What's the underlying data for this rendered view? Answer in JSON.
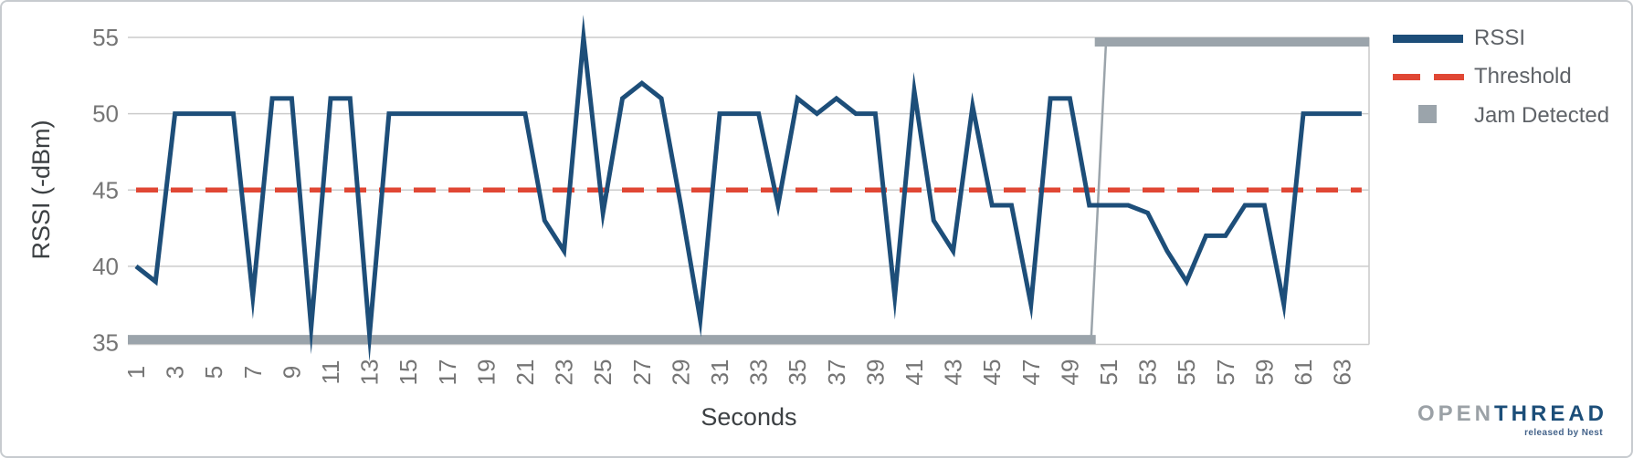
{
  "chart_data": {
    "type": "line",
    "title": "",
    "xlabel": "Seconds",
    "ylabel": "RSSI (-dBm)",
    "ylim": [
      35,
      55
    ],
    "yticks": [
      55,
      50,
      45,
      40,
      35
    ],
    "xticks": [
      1,
      3,
      5,
      7,
      9,
      11,
      13,
      15,
      17,
      19,
      21,
      23,
      25,
      27,
      29,
      31,
      33,
      35,
      37,
      39,
      41,
      43,
      45,
      47,
      49,
      51,
      53,
      55,
      57,
      59,
      61,
      63
    ],
    "x_start": 1,
    "grid": true,
    "legend_position": "right",
    "series": [
      {
        "name": "RSSI",
        "style": "solid",
        "color": "#1d4e79",
        "values": [
          40,
          39,
          50,
          50,
          50,
          50,
          38,
          51,
          51,
          36,
          51,
          51,
          35.5,
          50,
          50,
          50,
          50,
          50,
          50,
          50,
          50,
          43,
          41,
          55,
          43.5,
          51,
          52,
          51,
          44,
          36.5,
          50,
          50,
          50,
          44,
          51,
          50,
          51,
          50,
          50,
          38,
          51.5,
          43,
          41,
          50.5,
          44,
          44,
          37.5,
          51,
          51,
          44,
          44,
          44,
          43.5,
          41,
          39,
          42,
          42,
          44,
          44,
          37.5,
          50,
          50,
          50,
          50
        ]
      },
      {
        "name": "Threshold",
        "style": "dashed",
        "color": "#e04734",
        "constant_value": 45
      },
      {
        "name": "Jam Detected",
        "style": "step-bar",
        "color": "#9ba4ab",
        "values": [
          35.2,
          35.2,
          35.2,
          35.2,
          35.2,
          35.2,
          35.2,
          35.2,
          35.2,
          35.2,
          35.2,
          35.2,
          35.2,
          35.2,
          35.2,
          35.2,
          35.2,
          35.2,
          35.2,
          35.2,
          35.2,
          35.2,
          35.2,
          35.2,
          35.2,
          35.2,
          35.2,
          35.2,
          35.2,
          35.2,
          35.2,
          35.2,
          35.2,
          35.2,
          35.2,
          35.2,
          35.2,
          35.2,
          35.2,
          35.2,
          35.2,
          35.2,
          35.2,
          35.2,
          35.2,
          35.2,
          35.2,
          35.2,
          35.2,
          35.2,
          54.7,
          54.7,
          54.7,
          54.7,
          54.7,
          54.7,
          54.7,
          54.7,
          54.7,
          54.7,
          54.7,
          54.7,
          54.7,
          54.7
        ]
      }
    ]
  },
  "legend": {
    "items": [
      {
        "label": "RSSI",
        "marker": "line-marker",
        "color": "#1d4e79"
      },
      {
        "label": "Threshold",
        "marker": "dashed-line-marker",
        "color": "#e04734"
      },
      {
        "label": "Jam Detected",
        "marker": "square-marker",
        "color": "#9ba4ab"
      }
    ]
  },
  "colors": {
    "rssi_line": "#1d4e79",
    "threshold_line": "#e04734",
    "jam_series": "#9ba4ab",
    "gridline": "#cccccc",
    "tick_label": "#757575",
    "axis_title": "#3c4043",
    "legend_label": "#5f6368"
  },
  "logo": {
    "part1": "OPEN",
    "part2": "THREAD",
    "tagline": "released by Nest"
  }
}
